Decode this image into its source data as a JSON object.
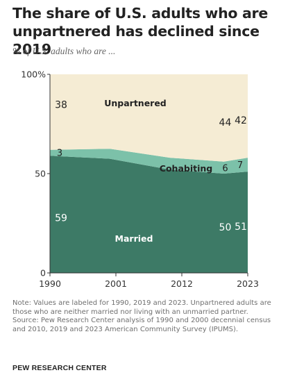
{
  "title": "The share of U.S. adults who are unpartnered has declined since 2019",
  "subtitle": "% of U.S. adults who are ...",
  "note": "Note: Values are labeled for 1990, 2019 and 2023. Unpartnered adults are those who are neither married nor living with an unmarried partner.",
  "source": "Source: Pew Research Center analysis of 1990 and 2000 decennial census and 2010, 2019 and 2023 American Community Survey (IPUMS).",
  "brand": "PEW RESEARCH CENTER",
  "colors": {
    "married": "#3d7a66",
    "cohabiting": "#7cc1a9",
    "unpartnered": "#f5ecd4",
    "axis": "#333333",
    "label_light": "#ffffff",
    "label_dark": "#222222"
  },
  "chart_data": {
    "type": "area",
    "stacked": true,
    "x": [
      1990,
      2000,
      2010,
      2019,
      2023
    ],
    "x_ticks": [
      1990,
      2001,
      2012,
      2023
    ],
    "x_tick_labels": [
      "1990",
      "2001",
      "2012",
      "2023"
    ],
    "y_ticks": [
      0,
      50,
      100
    ],
    "y_tick_labels": [
      "0",
      "50",
      "100%"
    ],
    "ylim": [
      0,
      100
    ],
    "series": [
      {
        "name": "Married",
        "values": [
          59,
          57.5,
          52,
          50,
          51
        ],
        "color": "#3d7a66"
      },
      {
        "name": "Cohabiting",
        "values": [
          3,
          5,
          6,
          6,
          7
        ],
        "color": "#7cc1a9"
      },
      {
        "name": "Unpartnered",
        "values": [
          38,
          37.5,
          42,
          44,
          42
        ],
        "color": "#f5ecd4"
      }
    ],
    "value_labels": [
      {
        "series": "Unpartnered",
        "x": 1990,
        "text": "38"
      },
      {
        "series": "Unpartnered",
        "x": 2019,
        "text": "44"
      },
      {
        "series": "Unpartnered",
        "x": 2023,
        "text": "42"
      },
      {
        "series": "Cohabiting",
        "x": 1990,
        "text": "3"
      },
      {
        "series": "Cohabiting",
        "x": 2019,
        "text": "6"
      },
      {
        "series": "Cohabiting",
        "x": 2023,
        "text": "7"
      },
      {
        "series": "Married",
        "x": 1990,
        "text": "59"
      },
      {
        "series": "Married",
        "x": 2019,
        "text": "50"
      },
      {
        "series": "Married",
        "x": 2023,
        "text": "51"
      }
    ],
    "series_labels": [
      {
        "series": "Unpartnered",
        "text": "Unpartnered"
      },
      {
        "series": "Cohabiting",
        "text": "Cohabiting"
      },
      {
        "series": "Married",
        "text": "Married"
      }
    ],
    "grid": false,
    "legend": "inline"
  }
}
